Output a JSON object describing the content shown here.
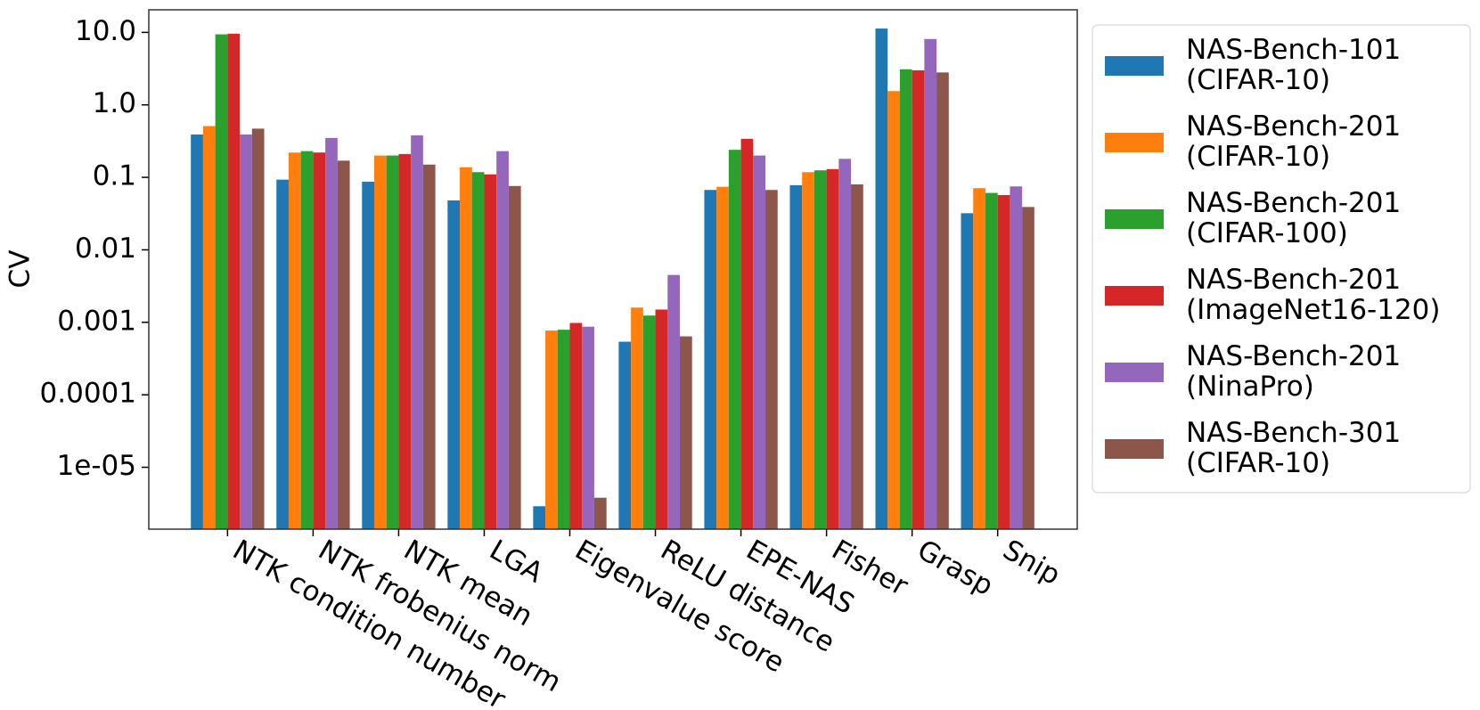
{
  "chart_data": {
    "type": "bar",
    "y_label": "CV",
    "y_scale": "log",
    "categories": [
      "NTK condition number",
      "NTK frobenius norm",
      "NTK mean",
      "LGA",
      "Eigenvalue score",
      "ReLU distance",
      "EPE-NAS",
      "Fisher",
      "Grasp",
      "Snip"
    ],
    "series": [
      {
        "name": "NAS-Bench-101\n(CIFAR-10)",
        "color": "#1f77b4",
        "values": [
          0.39,
          0.093,
          0.087,
          0.048,
          2.9e-06,
          0.00054,
          0.067,
          0.078,
          11.3,
          0.032
        ]
      },
      {
        "name": "NAS-Bench-201\n(CIFAR-10)",
        "color": "#ff7f0e",
        "values": [
          0.51,
          0.22,
          0.2,
          0.138,
          0.00077,
          0.0016,
          0.074,
          0.118,
          1.55,
          0.071
        ]
      },
      {
        "name": "NAS-Bench-201\n(CIFAR-100)",
        "color": "#2ca02c",
        "values": [
          9.4,
          0.23,
          0.2,
          0.118,
          0.00079,
          0.00124,
          0.24,
          0.125,
          3.1,
          0.061
        ]
      },
      {
        "name": "NAS-Bench-201\n(ImageNet16-120)",
        "color": "#d62728",
        "values": [
          9.6,
          0.22,
          0.21,
          0.11,
          0.00098,
          0.0015,
          0.34,
          0.13,
          3.0,
          0.057
        ]
      },
      {
        "name": "NAS-Bench-201\n(NinaPro)",
        "color": "#9467bd",
        "values": [
          0.39,
          0.35,
          0.38,
          0.23,
          0.00087,
          0.0045,
          0.2,
          0.18,
          8.1,
          0.075
        ]
      },
      {
        "name": "NAS-Bench-301\n(CIFAR-10)",
        "color": "#8c564b",
        "values": [
          0.47,
          0.17,
          0.15,
          0.076,
          3.8e-06,
          0.00064,
          0.067,
          0.08,
          2.8,
          0.039
        ]
      }
    ],
    "ylim": [
      1.4e-06,
      20.5
    ],
    "yticks": [
      {
        "value": 10,
        "label": "10.0"
      },
      {
        "value": 1,
        "label": "1.0"
      },
      0.1,
      0.01,
      0.001,
      0.0001,
      {
        "value": 1e-05,
        "label": "1e-05"
      }
    ],
    "grid": false,
    "legend": "outside right"
  }
}
